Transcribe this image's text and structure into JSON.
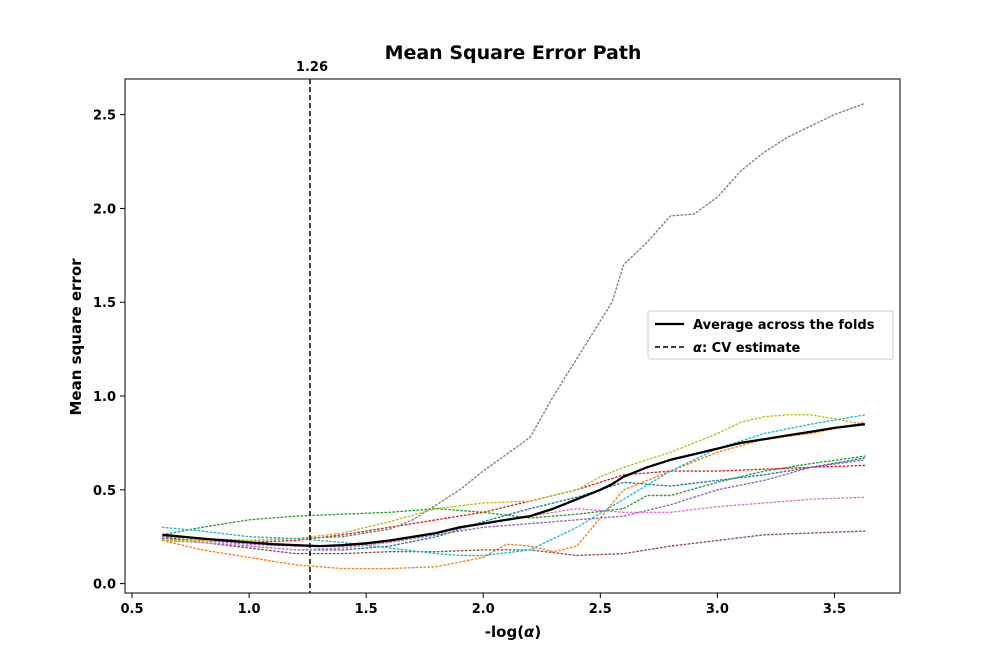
{
  "chart_data": {
    "type": "line",
    "title": "Mean Square Error Path",
    "xlabel": "-log(α)",
    "ylabel": "Mean square error",
    "xlim": [
      0.47,
      3.78
    ],
    "ylim": [
      -0.05,
      2.69
    ],
    "xticks": [
      0.5,
      1.0,
      1.5,
      2.0,
      2.5,
      3.0,
      3.5
    ],
    "xtick_labels": [
      "0.5",
      "1.0",
      "1.5",
      "2.0",
      "2.5",
      "3.0",
      "3.5"
    ],
    "yticks": [
      0.0,
      0.5,
      1.0,
      1.5,
      2.0,
      2.5
    ],
    "ytick_labels": [
      "0.0",
      "0.5",
      "1.0",
      "1.5",
      "2.0",
      "2.5"
    ],
    "grid": false,
    "legend_position": "center-right",
    "legend": [
      {
        "label": "Average across the folds",
        "style": "solid",
        "color": "#000000"
      },
      {
        "label": "α: CV estimate",
        "style": "dashed",
        "color": "#000000"
      }
    ],
    "vline": {
      "x": 1.26,
      "label": "1.26",
      "color": "#000000",
      "style": "dashed"
    },
    "fold_series": [
      {
        "color": "#1f77b4",
        "x": [
          0.63,
          0.8,
          1.0,
          1.2,
          1.4,
          1.6,
          1.8,
          2.0,
          2.2,
          2.4,
          2.5,
          2.6,
          2.7,
          2.8,
          3.0,
          3.2,
          3.4,
          3.63
        ],
        "y": [
          0.23,
          0.22,
          0.2,
          0.18,
          0.18,
          0.2,
          0.25,
          0.33,
          0.4,
          0.46,
          0.5,
          0.54,
          0.53,
          0.52,
          0.55,
          0.58,
          0.62,
          0.67
        ]
      },
      {
        "color": "#ff7f0e",
        "x": [
          0.63,
          0.8,
          1.0,
          1.2,
          1.4,
          1.6,
          1.8,
          2.0,
          2.1,
          2.2,
          2.3,
          2.4,
          2.5,
          2.6,
          2.8,
          3.0,
          3.2,
          3.4,
          3.63
        ],
        "y": [
          0.23,
          0.18,
          0.14,
          0.1,
          0.08,
          0.08,
          0.09,
          0.14,
          0.21,
          0.2,
          0.17,
          0.2,
          0.35,
          0.5,
          0.6,
          0.7,
          0.77,
          0.8,
          0.86
        ]
      },
      {
        "color": "#2ca02c",
        "x": [
          0.63,
          0.8,
          1.0,
          1.2,
          1.4,
          1.6,
          1.8,
          2.0,
          2.2,
          2.4,
          2.6,
          2.7,
          2.8,
          3.0,
          3.2,
          3.4,
          3.63
        ],
        "y": [
          0.26,
          0.3,
          0.34,
          0.36,
          0.37,
          0.38,
          0.4,
          0.38,
          0.35,
          0.37,
          0.4,
          0.47,
          0.47,
          0.54,
          0.6,
          0.64,
          0.68
        ]
      },
      {
        "color": "#d62728",
        "x": [
          0.63,
          0.8,
          1.0,
          1.2,
          1.4,
          1.6,
          1.8,
          2.0,
          2.2,
          2.4,
          2.6,
          2.8,
          3.0,
          3.2,
          3.4,
          3.63
        ],
        "y": [
          0.24,
          0.23,
          0.22,
          0.23,
          0.26,
          0.3,
          0.34,
          0.38,
          0.44,
          0.5,
          0.58,
          0.6,
          0.6,
          0.61,
          0.62,
          0.63
        ]
      },
      {
        "color": "#9467bd",
        "x": [
          0.63,
          0.8,
          1.0,
          1.2,
          1.4,
          1.6,
          1.8,
          2.0,
          2.2,
          2.4,
          2.6,
          2.8,
          3.0,
          3.2,
          3.4,
          3.63
        ],
        "y": [
          0.24,
          0.23,
          0.21,
          0.2,
          0.2,
          0.22,
          0.26,
          0.3,
          0.32,
          0.34,
          0.36,
          0.42,
          0.5,
          0.55,
          0.62,
          0.66
        ]
      },
      {
        "color": "#8c564b",
        "x": [
          0.63,
          0.8,
          1.0,
          1.2,
          1.4,
          1.6,
          1.8,
          2.0,
          2.2,
          2.4,
          2.6,
          2.8,
          3.0,
          3.2,
          3.4,
          3.63
        ],
        "y": [
          0.25,
          0.22,
          0.19,
          0.16,
          0.16,
          0.17,
          0.17,
          0.18,
          0.18,
          0.15,
          0.16,
          0.2,
          0.23,
          0.26,
          0.27,
          0.28
        ]
      },
      {
        "color": "#e377c2",
        "x": [
          0.63,
          0.8,
          1.0,
          1.2,
          1.4,
          1.6,
          1.8,
          2.0,
          2.2,
          2.4,
          2.6,
          2.8,
          3.0,
          3.2,
          3.4,
          3.63
        ],
        "y": [
          0.23,
          0.22,
          0.2,
          0.18,
          0.19,
          0.22,
          0.27,
          0.32,
          0.36,
          0.4,
          0.38,
          0.38,
          0.41,
          0.43,
          0.45,
          0.46
        ]
      },
      {
        "color": "#7f7f7f",
        "x": [
          0.63,
          0.8,
          1.0,
          1.2,
          1.4,
          1.6,
          1.7,
          1.8,
          1.9,
          2.0,
          2.2,
          2.3,
          2.4,
          2.5,
          2.55,
          2.6,
          2.7,
          2.8,
          2.9,
          3.0,
          3.1,
          3.2,
          3.3,
          3.4,
          3.5,
          3.63
        ],
        "y": [
          0.25,
          0.24,
          0.23,
          0.24,
          0.25,
          0.29,
          0.34,
          0.42,
          0.5,
          0.6,
          0.78,
          1.0,
          1.2,
          1.4,
          1.5,
          1.7,
          1.82,
          1.96,
          1.97,
          2.06,
          2.2,
          2.3,
          2.38,
          2.44,
          2.5,
          2.56
        ]
      },
      {
        "color": "#bcbd22",
        "x": [
          0.63,
          0.8,
          1.0,
          1.2,
          1.4,
          1.6,
          1.8,
          2.0,
          2.2,
          2.4,
          2.5,
          2.6,
          2.8,
          3.0,
          3.1,
          3.2,
          3.3,
          3.4,
          3.63
        ],
        "y": [
          0.23,
          0.23,
          0.23,
          0.24,
          0.27,
          0.33,
          0.4,
          0.43,
          0.44,
          0.5,
          0.57,
          0.62,
          0.7,
          0.8,
          0.86,
          0.89,
          0.9,
          0.9,
          0.85
        ]
      },
      {
        "color": "#17becf",
        "x": [
          0.63,
          0.8,
          1.0,
          1.2,
          1.4,
          1.6,
          1.8,
          1.9,
          2.0,
          2.2,
          2.4,
          2.6,
          2.8,
          3.0,
          3.2,
          3.4,
          3.63
        ],
        "y": [
          0.3,
          0.28,
          0.25,
          0.24,
          0.22,
          0.19,
          0.16,
          0.15,
          0.15,
          0.18,
          0.3,
          0.45,
          0.6,
          0.72,
          0.8,
          0.85,
          0.9
        ]
      }
    ],
    "average_series": {
      "name": "Average across the folds",
      "color": "#000000",
      "x": [
        0.63,
        0.8,
        1.0,
        1.1,
        1.2,
        1.3,
        1.4,
        1.5,
        1.6,
        1.7,
        1.8,
        1.9,
        2.0,
        2.1,
        2.2,
        2.3,
        2.4,
        2.5,
        2.55,
        2.6,
        2.7,
        2.8,
        2.9,
        3.0,
        3.1,
        3.2,
        3.3,
        3.4,
        3.5,
        3.63
      ],
      "y": [
        0.26,
        0.24,
        0.22,
        0.21,
        0.205,
        0.2,
        0.205,
        0.215,
        0.23,
        0.25,
        0.27,
        0.3,
        0.32,
        0.34,
        0.36,
        0.4,
        0.45,
        0.5,
        0.53,
        0.57,
        0.62,
        0.66,
        0.69,
        0.72,
        0.75,
        0.77,
        0.79,
        0.81,
        0.83,
        0.85
      ]
    }
  }
}
